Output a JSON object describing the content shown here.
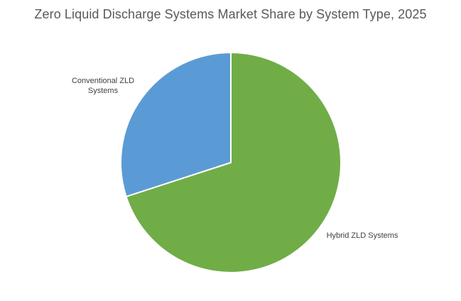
{
  "chart_data": {
    "type": "pie",
    "title": "Zero Liquid Discharge Systems Market Share by System Type, 2025",
    "categories": [
      "Hybrid ZLD Systems",
      "Conventional ZLD Systems"
    ],
    "values": [
      70,
      30
    ],
    "colors": [
      "#70ad47",
      "#5b9bd5"
    ],
    "label_lines": [
      [
        "Hybrid ZLD Systems"
      ],
      [
        "Conventional ZLD",
        "Systems"
      ]
    ],
    "legend": "none",
    "start_angle_deg": 0,
    "direction": "clockwise"
  }
}
